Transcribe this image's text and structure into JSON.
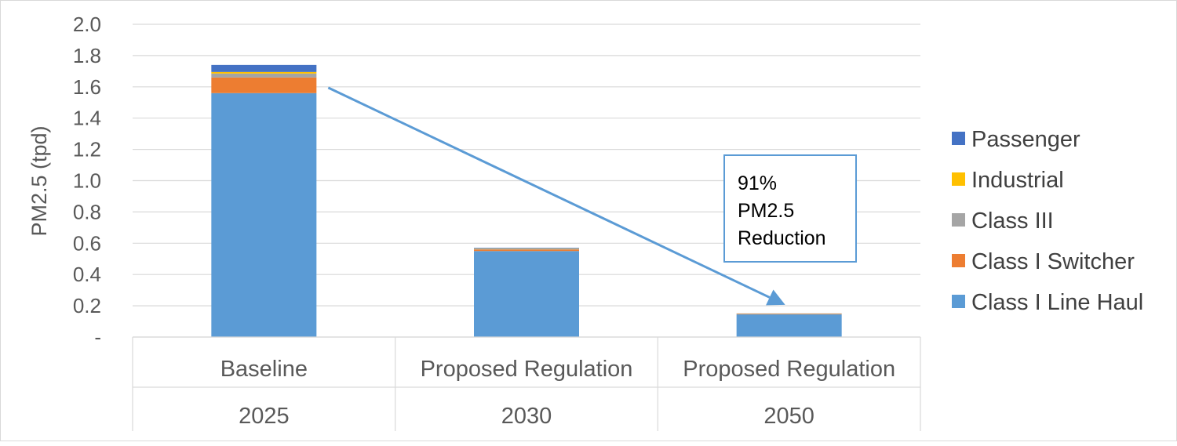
{
  "chart_data": {
    "type": "bar",
    "stacked": true,
    "title": "",
    "ylabel": "PM2.5 (tpd)",
    "ylim": [
      0,
      2.0
    ],
    "yticks": [
      0,
      0.2,
      0.4,
      0.6,
      0.8,
      1.0,
      1.2,
      1.4,
      1.6,
      1.8,
      2.0
    ],
    "ytick_labels": [
      "-",
      "0.2",
      "0.4",
      "0.6",
      "0.8",
      "1.0",
      "1.2",
      "1.4",
      "1.6",
      "1.8",
      "2.0"
    ],
    "categories": [
      {
        "label": "Baseline",
        "year": "2025"
      },
      {
        "label": "Proposed Regulation",
        "year": "2030"
      },
      {
        "label": "Proposed Regulation",
        "year": "2050"
      }
    ],
    "series": [
      {
        "name": "Class I Line Haul",
        "color": "#5B9BD5",
        "values": [
          1.56,
          0.55,
          0.145
        ]
      },
      {
        "name": "Class I Switcher",
        "color": "#ED7D31",
        "values": [
          0.1,
          0.01,
          0.003
        ]
      },
      {
        "name": "Class III",
        "color": "#A5A5A5",
        "values": [
          0.025,
          0.004,
          0.001
        ]
      },
      {
        "name": "Industrial",
        "color": "#FFC000",
        "values": [
          0.01,
          0.002,
          0.001
        ]
      },
      {
        "name": "Passenger",
        "color": "#4472C4",
        "values": [
          0.045,
          0.004,
          0.001
        ]
      }
    ],
    "legend": {
      "position": "right",
      "order": [
        "Passenger",
        "Industrial",
        "Class III",
        "Class I Switcher",
        "Class I Line Haul"
      ]
    },
    "grid": true,
    "annotation": {
      "lines": [
        "91%",
        "PM2.5",
        "Reduction"
      ],
      "arrow": {
        "from_category": 0,
        "to_category": 2
      },
      "arrow_color": "#5B9BD5",
      "box_border_color": "#5B9BD5"
    }
  }
}
